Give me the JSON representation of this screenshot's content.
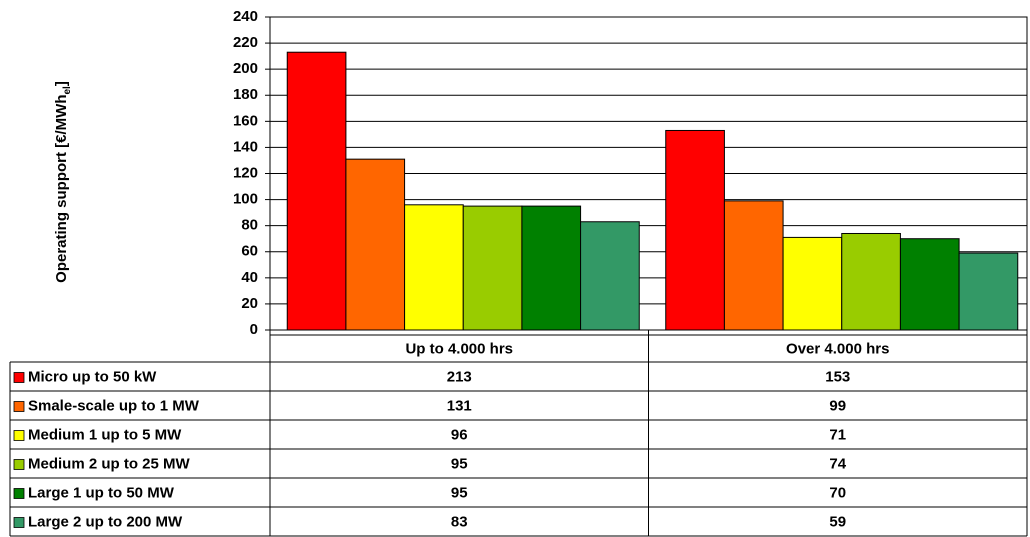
{
  "chart_data": {
    "type": "bar",
    "y_label": [
      "Operating support [€/MWh",
      "el",
      "]"
    ],
    "categories": [
      "Up to 4.000 hrs",
      "Over 4.000 hrs"
    ],
    "series": [
      {
        "name": "Micro up to 50 kW",
        "color": "#ff0000",
        "values": [
          213,
          153
        ]
      },
      {
        "name": "Smale-scale  up to 1 MW",
        "color": "#ff6600",
        "values": [
          131,
          99
        ]
      },
      {
        "name": "Medium 1 up to 5 MW",
        "color": "#ffff00",
        "values": [
          96,
          71
        ]
      },
      {
        "name": "Medium 2 up to 25 MW",
        "color": "#99cc00",
        "values": [
          95,
          74
        ]
      },
      {
        "name": "Large 1  up to 50 MW",
        "color": "#008000",
        "values": [
          95,
          70
        ]
      },
      {
        "name": "Large 2 up to 200 MW",
        "color": "#339966",
        "values": [
          83,
          59
        ]
      }
    ],
    "ylim": [
      0,
      240
    ],
    "yticks": [
      0,
      20,
      40,
      60,
      80,
      100,
      120,
      140,
      160,
      180,
      200,
      220,
      240
    ],
    "grid": true
  }
}
